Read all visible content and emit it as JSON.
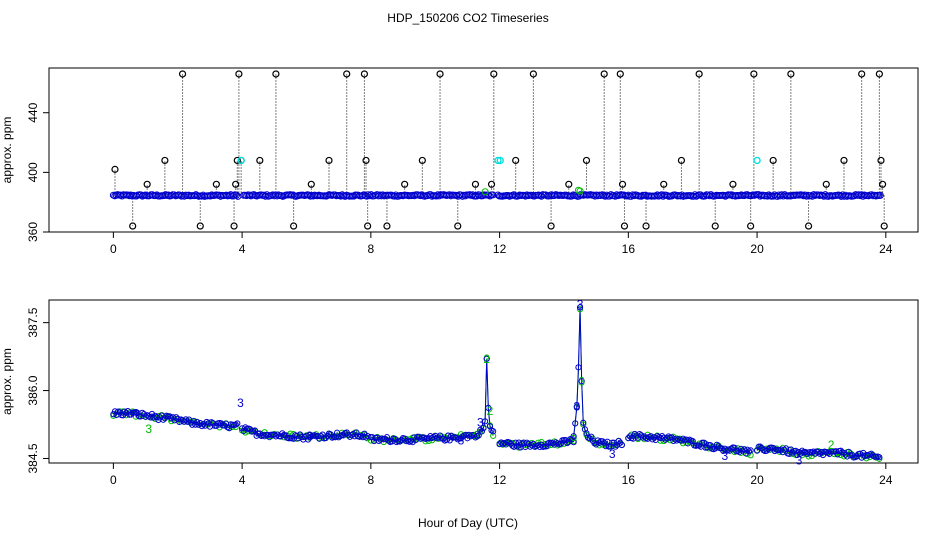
{
  "title": "HDP_150206  CO2 Timeseries",
  "xlabel": "Hour of Day (UTC)",
  "colors": {
    "black": "#000000",
    "blue": "#0000cc",
    "cyan": "#00e0e0",
    "green": "#00bb00"
  },
  "chart_data": [
    {
      "type": "scatter",
      "ylabel": "approx. ppm",
      "xlim": [
        -2,
        25
      ],
      "ylim": [
        360,
        470
      ],
      "xticks": [
        "0",
        "4",
        "8",
        "12",
        "16",
        "20",
        "24"
      ],
      "xtick_values": [
        0,
        4,
        8,
        12,
        16,
        20,
        24
      ],
      "yticks": [
        "360",
        "400",
        "440"
      ],
      "ytick_values": [
        360,
        400,
        440
      ],
      "baseline": 384.5,
      "baseline_segments": [
        [
          0,
          3.9
        ],
        [
          4.05,
          11.8
        ],
        [
          11.95,
          23.85
        ]
      ],
      "series": [
        {
          "values_x": [
            0.05,
            0.6,
            1.05,
            1.6,
            2.15,
            2.7,
            3.2,
            3.75,
            3.8,
            3.85,
            3.9,
            3.97,
            4.55,
            5.05,
            5.6,
            6.15,
            6.7,
            7.25,
            7.8,
            7.85,
            7.9,
            8.5,
            9.05,
            9.6,
            10.15,
            10.7,
            11.25,
            11.75,
            11.82,
            12.5,
            13.05,
            13.6,
            14.15,
            14.7,
            15.25,
            15.75,
            15.82,
            15.88,
            16.55,
            17.1,
            17.65,
            18.2,
            18.7,
            19.25,
            19.8,
            19.9,
            20.5,
            21.05,
            21.6,
            22.15,
            22.7,
            23.25,
            23.8,
            23.85,
            23.9,
            23.95
          ],
          "values_y": [
            402,
            364,
            392,
            408,
            466,
            364,
            392,
            364,
            392,
            408,
            466,
            408,
            408,
            466,
            364,
            392,
            408,
            466,
            466,
            408,
            364,
            364,
            392,
            408,
            466,
            364,
            392,
            392,
            466,
            408,
            466,
            364,
            392,
            408,
            466,
            466,
            392,
            364,
            364,
            392,
            408,
            466,
            364,
            392,
            364,
            466,
            408,
            466,
            364,
            392,
            408,
            466,
            466,
            408,
            392,
            364
          ]
        },
        {
          "values_x": [
            3.97,
            11.95,
            12.02,
            20.0
          ],
          "values_y": [
            408,
            408,
            408,
            408
          ]
        }
      ]
    },
    {
      "type": "scatter",
      "ylabel": "approx. ppm",
      "xlim": [
        -2,
        25
      ],
      "ylim": [
        384.4,
        388.0
      ],
      "xticks": [
        "0",
        "4",
        "8",
        "12",
        "16",
        "20",
        "24"
      ],
      "xtick_values": [
        0,
        4,
        8,
        12,
        16,
        20,
        24
      ],
      "yticks": [
        "384.5",
        "386.0",
        "387.5"
      ],
      "ytick_values": [
        384.5,
        386.0,
        387.5
      ],
      "segments": [
        {
          "x": [
            0,
            0.5,
            1.0,
            1.5,
            2.0,
            2.5,
            3.0,
            3.5,
            3.85
          ],
          "y": [
            385.5,
            385.5,
            385.45,
            385.4,
            385.35,
            385.28,
            385.25,
            385.22,
            385.22
          ]
        },
        {
          "x": [
            4.0,
            4.5,
            5.0,
            5.5,
            6.0,
            6.5,
            7.0,
            7.5,
            7.9
          ],
          "y": [
            385.15,
            385.05,
            385.02,
            385.0,
            384.97,
            385.0,
            385.02,
            385.02,
            385.0
          ]
        },
        {
          "x": [
            8.0,
            8.5,
            9.0,
            9.5,
            10.0,
            10.5,
            11.0,
            11.3
          ],
          "y": [
            384.92,
            384.92,
            384.92,
            384.92,
            384.95,
            384.95,
            385.0,
            385.0
          ]
        },
        {
          "x": [
            11.3,
            11.45,
            11.55,
            11.6,
            11.65,
            11.7,
            11.8
          ],
          "y": [
            385.05,
            385.1,
            385.3,
            386.7,
            385.6,
            385.2,
            385.05
          ]
        },
        {
          "x": [
            12.0,
            12.5,
            13.0,
            13.5,
            14.0,
            14.3
          ],
          "y": [
            384.85,
            384.8,
            384.8,
            384.82,
            384.85,
            384.9
          ]
        },
        {
          "x": [
            14.3,
            14.4,
            14.45,
            14.5,
            14.55,
            14.6,
            14.7,
            15.0,
            15.5,
            15.8
          ],
          "y": [
            385.0,
            385.6,
            386.5,
            387.8,
            386.2,
            385.3,
            385.0,
            384.85,
            384.8,
            384.85
          ]
        },
        {
          "x": [
            16.0,
            16.5,
            17.0,
            17.5,
            18.0,
            18.5,
            19.0,
            19.5,
            19.8
          ],
          "y": [
            385.0,
            384.98,
            384.95,
            384.92,
            384.85,
            384.78,
            384.72,
            384.68,
            384.62
          ]
        },
        {
          "x": [
            20.0,
            20.5,
            21.0,
            21.5,
            22.0,
            22.5,
            23.0,
            23.5,
            23.8
          ],
          "y": [
            384.7,
            384.72,
            384.65,
            384.6,
            384.62,
            384.62,
            384.58,
            384.55,
            384.52
          ]
        }
      ],
      "labels": [
        {
          "text": "3",
          "x": 3.95,
          "y": 385.72,
          "color": "#0000cc"
        },
        {
          "text": "2",
          "x": 11.6,
          "y": 386.7,
          "color": "#00bb00"
        },
        {
          "text": "2",
          "x": 11.7,
          "y": 385.55,
          "color": "#00bb00"
        },
        {
          "text": "3",
          "x": 11.4,
          "y": 385.3,
          "color": "#0000cc"
        },
        {
          "text": "3",
          "x": 14.5,
          "y": 387.9,
          "color": "#0000cc"
        },
        {
          "text": "3",
          "x": 14.55,
          "y": 386.2,
          "color": "#00bb00"
        },
        {
          "text": "3",
          "x": 14.4,
          "y": 385.65,
          "color": "#0000cc"
        },
        {
          "text": "3",
          "x": 1.1,
          "y": 385.15,
          "color": "#00bb00"
        },
        {
          "text": "3",
          "x": 6.1,
          "y": 385.0,
          "color": "#0000cc"
        },
        {
          "text": "3",
          "x": 10.8,
          "y": 384.9,
          "color": "#0000cc"
        },
        {
          "text": "3",
          "x": 15.5,
          "y": 384.6,
          "color": "#0000cc"
        },
        {
          "text": "3",
          "x": 19.0,
          "y": 384.55,
          "color": "#0000cc"
        },
        {
          "text": "2",
          "x": 22.3,
          "y": 384.8,
          "color": "#00bb00"
        },
        {
          "text": "3",
          "x": 21.3,
          "y": 384.45,
          "color": "#0000cc"
        }
      ]
    }
  ]
}
